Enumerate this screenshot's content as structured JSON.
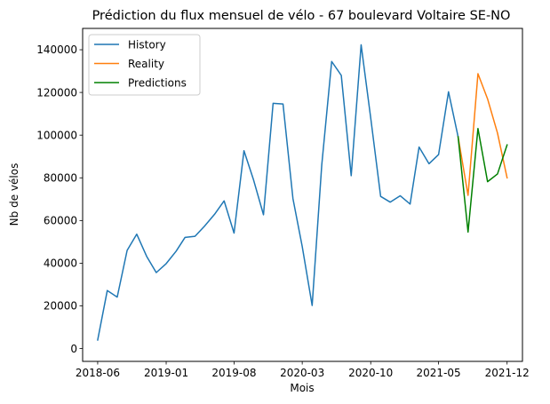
{
  "chart_data": {
    "type": "line",
    "title": "Prédiction du flux mensuel de vélo - 67 boulevard Voltaire SE-NO",
    "xlabel": "Mois",
    "ylabel": "Nb de vélos",
    "xlim": [
      "2018-04-15",
      "2022-01-18"
    ],
    "ylim": [
      -6000,
      150000
    ],
    "x_ticks": [
      "2018-06",
      "2019-01",
      "2019-08",
      "2020-03",
      "2020-10",
      "2021-05",
      "2021-12"
    ],
    "y_ticks": [
      0,
      20000,
      40000,
      60000,
      80000,
      100000,
      120000,
      140000
    ],
    "y_tick_labels": [
      "0",
      "20000",
      "40000",
      "60000",
      "80000",
      "100000",
      "120000",
      "140000"
    ],
    "legend_position": "top-left",
    "grid": false,
    "series": [
      {
        "name": "History",
        "color": "#1f77b4",
        "x": [
          "2018-06",
          "2018-07",
          "2018-08",
          "2018-09",
          "2018-10",
          "2018-11",
          "2018-12",
          "2019-01",
          "2019-02",
          "2019-03",
          "2019-04",
          "2019-05",
          "2019-06",
          "2019-07",
          "2019-08",
          "2019-09",
          "2019-10",
          "2019-11",
          "2019-12",
          "2020-01",
          "2020-02",
          "2020-03",
          "2020-04",
          "2020-05",
          "2020-06",
          "2020-07",
          "2020-08",
          "2020-09",
          "2020-10",
          "2020-11",
          "2020-12",
          "2021-01",
          "2021-02",
          "2021-03",
          "2021-04",
          "2021-05",
          "2021-06",
          "2021-07"
        ],
        "values": [
          4000,
          27200,
          24100,
          46000,
          53600,
          43200,
          35600,
          39800,
          45600,
          52100,
          52600,
          57400,
          62900,
          69200,
          54100,
          92700,
          79000,
          62700,
          114900,
          114600,
          70300,
          47800,
          20200,
          86000,
          134500,
          128000,
          81000,
          142300,
          108000,
          71300,
          68600,
          71600,
          67700,
          94400,
          86600,
          90900,
          120300,
          99200
        ]
      },
      {
        "name": "Reality",
        "color": "#ff7f0e",
        "x": [
          "2021-07",
          "2021-08",
          "2021-09",
          "2021-10",
          "2021-11",
          "2021-12"
        ],
        "values": [
          99200,
          71800,
          128800,
          117000,
          101000,
          80000
        ]
      },
      {
        "name": "Predictions",
        "color": "#008000",
        "x": [
          "2021-07",
          "2021-08",
          "2021-09",
          "2021-10",
          "2021-11",
          "2021-12"
        ],
        "values": [
          99200,
          54600,
          103100,
          78200,
          81800,
          95400
        ]
      }
    ]
  }
}
